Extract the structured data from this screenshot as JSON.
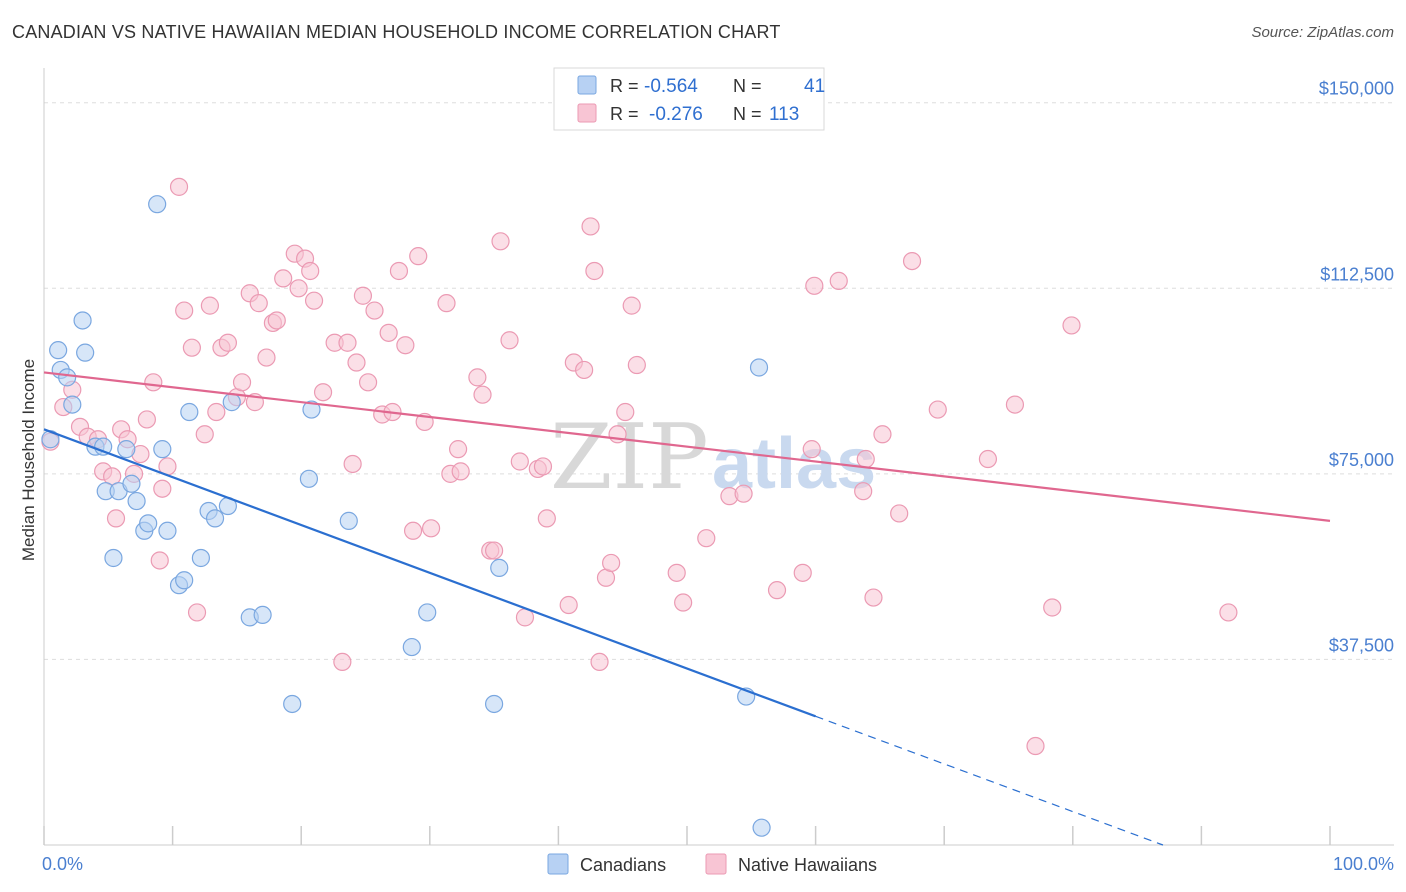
{
  "title": "CANADIAN VS NATIVE HAWAIIAN MEDIAN HOUSEHOLD INCOME CORRELATION CHART",
  "source": "Source: ZipAtlas.com",
  "watermark": {
    "zip": "ZIP",
    "atlas": "atlas"
  },
  "colors": {
    "canadian_fill": "#b7d1f3",
    "canadian_stroke": "#7aa7e0",
    "canadian_line": "#2b6fd0",
    "hawaiian_fill": "#f8c5d4",
    "hawaiian_stroke": "#eb9ab3",
    "hawaiian_line": "#e0678f",
    "grid": "#dddddd",
    "axis_text": "#4a7fd0"
  },
  "legend": {
    "rows": [
      {
        "r_label": "R =",
        "r_value": "-0.564",
        "n_label": "N =",
        "n_value": "41"
      },
      {
        "r_label": "R =",
        "r_value": "-0.276",
        "n_label": "N =",
        "n_value": "113"
      }
    ]
  },
  "chart_data": {
    "type": "scatter",
    "title": "CANADIAN VS NATIVE HAWAIIAN MEDIAN HOUSEHOLD INCOME CORRELATION CHART",
    "xlabel": "",
    "ylabel": "Median Household Income",
    "xlim": [
      0,
      100
    ],
    "ylim": [
      0,
      155000
    ],
    "x_tick_labels": [
      "0.0%",
      "100.0%"
    ],
    "y_ticks": [
      37500,
      75000,
      112500,
      150000
    ],
    "y_tick_labels": [
      "$37,500",
      "$75,000",
      "$112,500",
      "$150,000"
    ],
    "legend_position": "top-center",
    "series": [
      {
        "name": "Canadians",
        "r": -0.564,
        "n": 41,
        "trend": {
          "x0": 0,
          "y0": 84000,
          "x1": 60,
          "y1": 26000,
          "dash_to_x": 100,
          "dash_to_y": -12500
        },
        "points": [
          [
            0.5,
            82000
          ],
          [
            1.3,
            96000
          ],
          [
            1.8,
            94500
          ],
          [
            2.2,
            89000
          ],
          [
            1.1,
            100000
          ],
          [
            3.0,
            106000
          ],
          [
            3.2,
            99500
          ],
          [
            4.0,
            80500
          ],
          [
            4.6,
            80500
          ],
          [
            4.8,
            71500
          ],
          [
            5.4,
            58000
          ],
          [
            5.8,
            71500
          ],
          [
            6.4,
            80000
          ],
          [
            6.8,
            73000
          ],
          [
            7.2,
            69500
          ],
          [
            7.8,
            63500
          ],
          [
            8.1,
            65000
          ],
          [
            8.8,
            129500
          ],
          [
            9.2,
            80000
          ],
          [
            9.6,
            63500
          ],
          [
            10.5,
            52500
          ],
          [
            10.9,
            53500
          ],
          [
            11.3,
            87500
          ],
          [
            12.2,
            58000
          ],
          [
            12.8,
            67500
          ],
          [
            13.3,
            66000
          ],
          [
            14.3,
            68500
          ],
          [
            14.6,
            89500
          ],
          [
            16.0,
            46000
          ],
          [
            17.0,
            46500
          ],
          [
            19.3,
            28500
          ],
          [
            20.6,
            74000
          ],
          [
            20.8,
            88000
          ],
          [
            23.7,
            65500
          ],
          [
            28.6,
            40000
          ],
          [
            29.8,
            47000
          ],
          [
            35.0,
            28500
          ],
          [
            35.4,
            56000
          ],
          [
            54.6,
            30000
          ],
          [
            55.6,
            96500
          ],
          [
            55.8,
            3500
          ]
        ]
      },
      {
        "name": "Native Hawaiians",
        "r": -0.276,
        "n": 113,
        "trend": {
          "x0": 0,
          "y0": 95500,
          "x1": 100,
          "y1": 65500
        },
        "points": [
          [
            0.5,
            81500
          ],
          [
            1.5,
            88500
          ],
          [
            2.2,
            92000
          ],
          [
            2.8,
            84500
          ],
          [
            3.4,
            82500
          ],
          [
            4.2,
            82000
          ],
          [
            4.6,
            75500
          ],
          [
            5.3,
            74500
          ],
          [
            5.6,
            66000
          ],
          [
            6.0,
            84000
          ],
          [
            6.5,
            82000
          ],
          [
            7.0,
            75000
          ],
          [
            7.5,
            79000
          ],
          [
            8.0,
            86000
          ],
          [
            8.5,
            93500
          ],
          [
            9.0,
            57500
          ],
          [
            9.2,
            72000
          ],
          [
            9.6,
            76500
          ],
          [
            10.5,
            133000
          ],
          [
            10.9,
            108000
          ],
          [
            11.5,
            100500
          ],
          [
            11.9,
            47000
          ],
          [
            12.5,
            83000
          ],
          [
            12.9,
            109000
          ],
          [
            13.4,
            87500
          ],
          [
            13.8,
            100500
          ],
          [
            14.3,
            101500
          ],
          [
            15.0,
            90500
          ],
          [
            15.4,
            93500
          ],
          [
            16.0,
            111500
          ],
          [
            16.4,
            89500
          ],
          [
            16.7,
            109500
          ],
          [
            17.3,
            98500
          ],
          [
            17.8,
            105500
          ],
          [
            18.1,
            106000
          ],
          [
            18.6,
            114500
          ],
          [
            19.5,
            119500
          ],
          [
            19.8,
            112500
          ],
          [
            20.3,
            118500
          ],
          [
            20.7,
            116000
          ],
          [
            21.0,
            110000
          ],
          [
            21.7,
            91500
          ],
          [
            22.6,
            101500
          ],
          [
            23.2,
            37000
          ],
          [
            23.6,
            101500
          ],
          [
            24.0,
            77000
          ],
          [
            24.3,
            97500
          ],
          [
            24.8,
            111000
          ],
          [
            25.2,
            93500
          ],
          [
            25.7,
            108000
          ],
          [
            26.3,
            87000
          ],
          [
            26.8,
            103500
          ],
          [
            27.1,
            87500
          ],
          [
            27.6,
            116000
          ],
          [
            28.1,
            101000
          ],
          [
            28.7,
            63500
          ],
          [
            29.1,
            119000
          ],
          [
            29.6,
            85500
          ],
          [
            30.1,
            64000
          ],
          [
            31.3,
            109500
          ],
          [
            31.6,
            75000
          ],
          [
            32.2,
            80000
          ],
          [
            32.4,
            75500
          ],
          [
            33.7,
            94500
          ],
          [
            34.1,
            91000
          ],
          [
            34.7,
            59500
          ],
          [
            35.0,
            59500
          ],
          [
            35.5,
            122000
          ],
          [
            36.2,
            102000
          ],
          [
            37.0,
            77500
          ],
          [
            37.4,
            46000
          ],
          [
            38.4,
            76000
          ],
          [
            38.8,
            76500
          ],
          [
            39.1,
            66000
          ],
          [
            40.8,
            48500
          ],
          [
            41.2,
            97500
          ],
          [
            42.0,
            96000
          ],
          [
            42.5,
            125000
          ],
          [
            42.8,
            116000
          ],
          [
            43.2,
            37000
          ],
          [
            43.7,
            54000
          ],
          [
            44.1,
            57000
          ],
          [
            44.6,
            83000
          ],
          [
            45.2,
            87500
          ],
          [
            45.7,
            109000
          ],
          [
            46.1,
            97000
          ],
          [
            49.2,
            55000
          ],
          [
            49.7,
            49000
          ],
          [
            51.5,
            62000
          ],
          [
            53.3,
            70500
          ],
          [
            54.4,
            71000
          ],
          [
            57.0,
            51500
          ],
          [
            59.0,
            55000
          ],
          [
            59.7,
            80000
          ],
          [
            59.9,
            113000
          ],
          [
            61.8,
            114000
          ],
          [
            63.7,
            71500
          ],
          [
            63.9,
            78000
          ],
          [
            64.5,
            50000
          ],
          [
            65.2,
            83000
          ],
          [
            66.5,
            67000
          ],
          [
            67.5,
            118000
          ],
          [
            69.5,
            88000
          ],
          [
            73.4,
            78000
          ],
          [
            75.5,
            89000
          ],
          [
            77.1,
            20000
          ],
          [
            78.4,
            48000
          ],
          [
            79.9,
            105000
          ],
          [
            92.1,
            47000
          ]
        ]
      }
    ]
  },
  "bottom_legend": {
    "items": [
      "Canadians",
      "Native Hawaiians"
    ]
  }
}
